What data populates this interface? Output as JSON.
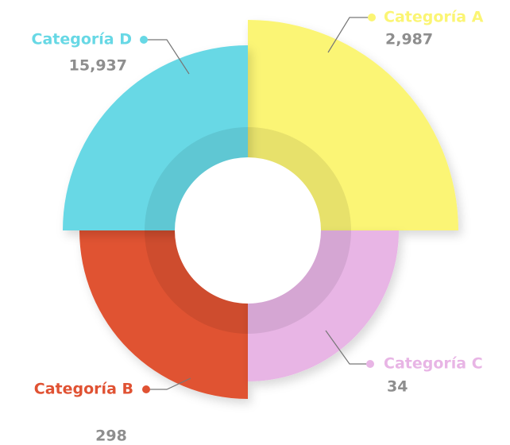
{
  "chart_data": {
    "type": "radial",
    "categories": [
      "Categoría A",
      "Categoría B",
      "Categoría C",
      "Categoría D"
    ],
    "values": [
      2987,
      298,
      34,
      15937
    ],
    "value_labels": [
      "2,987",
      "298",
      "34",
      "15,937"
    ],
    "colors": [
      "#fbf574",
      "#e05233",
      "#e8b5e5",
      "#67d8e5"
    ]
  }
}
